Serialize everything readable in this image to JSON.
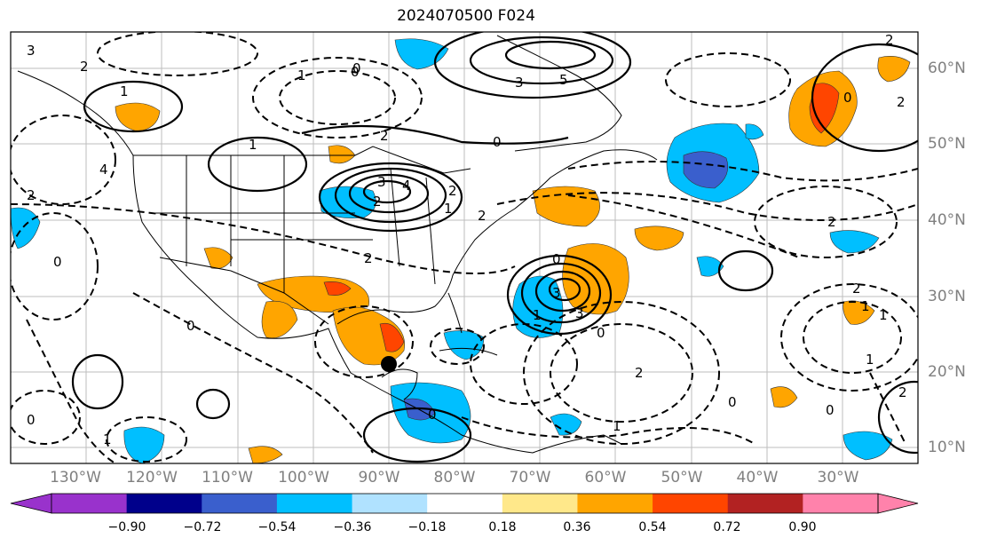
{
  "title": "2024070500 F024",
  "lon_labels": [
    "130°W",
    "120°W",
    "110°W",
    "100°W",
    "90°W",
    "80°W",
    "70°W",
    "60°W",
    "50°W",
    "40°W",
    "30°W"
  ],
  "lat_labels": [
    "60°N",
    "50°N",
    "40°N",
    "30°N",
    "20°N",
    "10°N"
  ],
  "colorbar": {
    "ticks": [
      "−0.90",
      "−0.72",
      "−0.54",
      "−0.36",
      "−0.18",
      "0.18",
      "0.36",
      "0.54",
      "0.72",
      "0.90"
    ],
    "colors": [
      "#9932cc",
      "#00008b",
      "#3a5fcd",
      "#00bfff",
      "#b0e2ff",
      "#ffffff",
      "#ffe88a",
      "#ffa500",
      "#ff4500",
      "#b22222",
      "#ff82ab"
    ],
    "under_color": "#9932cc",
    "over_color": "#ff82ab"
  },
  "contour_labels": [
    {
      "text": "3"
    },
    {
      "text": "2"
    },
    {
      "text": "0"
    },
    {
      "text": "1"
    },
    {
      "text": "1"
    },
    {
      "text": "2"
    },
    {
      "text": "0"
    },
    {
      "text": "3"
    },
    {
      "text": "3"
    },
    {
      "text": "4"
    },
    {
      "text": "2"
    },
    {
      "text": "0"
    },
    {
      "text": "2"
    },
    {
      "text": "1"
    },
    {
      "text": "2"
    },
    {
      "text": "4"
    },
    {
      "text": "2"
    },
    {
      "text": "0"
    },
    {
      "text": "3"
    },
    {
      "text": "5"
    },
    {
      "text": "2"
    },
    {
      "text": "2"
    },
    {
      "text": "1"
    },
    {
      "text": "1"
    },
    {
      "text": "2"
    },
    {
      "text": "0"
    },
    {
      "text": "2"
    },
    {
      "text": "1"
    },
    {
      "text": "0"
    },
    {
      "text": "3"
    },
    {
      "text": "2"
    },
    {
      "text": "2"
    },
    {
      "text": "0"
    },
    {
      "text": "0"
    },
    {
      "text": "1"
    },
    {
      "text": "1"
    },
    {
      "text": "0"
    },
    {
      "text": "0"
    },
    {
      "text": "0"
    },
    {
      "text": "1"
    },
    {
      "text": "2"
    },
    {
      "text": "1"
    },
    {
      "text": "0"
    }
  ]
}
